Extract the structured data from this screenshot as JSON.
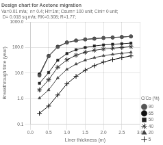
{
  "chart_data": {
    "type": "line",
    "title": "Design chart for Acetone migration",
    "subtitle": [
      "Va=0.01 m/a;  n= 0.4; Ht=1m; Csum= 100 unit; Cini= 0 unit;",
      " D= 0.018 sq.m/a; RK=0.308; R=1.77;"
    ],
    "xlabel": "Liner thickness (m)",
    "ylabel": "Breakthrough time (year)",
    "xlim": [
      0.0,
      3.0
    ],
    "ylim": [
      0.1,
      1000.0
    ],
    "xticks": [
      {
        "value": 0,
        "label": "0.0"
      },
      0.5,
      {
        "value": 1,
        "label": "1.0"
      },
      1.5,
      {
        "value": 2,
        "label": "2.0"
      },
      2.5,
      {
        "value": 3,
        "label": "3.0"
      }
    ],
    "yticks": [
      0.1,
      {
        "value": 1,
        "label": "1.0"
      },
      {
        "value": 10,
        "label": "10.0"
      },
      {
        "value": 100,
        "label": "100.0"
      },
      {
        "value": 1000,
        "label": "1000.0"
      }
    ],
    "log": "y",
    "grid": true,
    "legend": "lower right",
    "legend_title": "C/Co (%)",
    "x": [
      0.25,
      0.5,
      0.75,
      1.0,
      1.25,
      1.5,
      1.75,
      2.0,
      2.25,
      2.5,
      2.75
    ],
    "series": [
      {
        "name": "90",
        "color": "#555555",
        "marker": "circle",
        "values": [
          8.0,
          45.0,
          105.0,
          155.0,
          185.0,
          205.0,
          220.0,
          235.0,
          245.0,
          255.0,
          270.0
        ]
      },
      {
        "name": "65",
        "color": "#111111",
        "marker": "circle",
        "values": [
          9.0,
          47.0,
          108.0,
          158.0,
          188.0,
          208.0,
          223.0,
          237.0,
          247.0,
          257.0,
          272.0
        ]
      },
      {
        "name": "50",
        "color": "#222222",
        "marker": "square",
        "values": [
          4.0,
          10.5,
          32.0,
          58.0,
          82.0,
          100.0,
          115.0,
          126.0,
          134.0,
          140.0,
          148.0
        ]
      },
      {
        "name": "40",
        "color": "#333333",
        "marker": "star",
        "values": [
          2.2,
          5.5,
          17.0,
          33.0,
          50.0,
          65.0,
          78.0,
          87.0,
          94.0,
          100.0,
          108.0
        ]
      },
      {
        "name": "20",
        "color": "#444444",
        "marker": "triangle",
        "values": [
          1.05,
          2.2,
          6.5,
          14.0,
          22.5,
          32.0,
          40.0,
          48.0,
          54.0,
          59.0,
          65.0
        ]
      },
      {
        "name": "5",
        "color": "#111111",
        "marker": "plus",
        "values": [
          0.27,
          0.52,
          1.4,
          3.8,
          7.5,
          13.0,
          19.5,
          27.0,
          33.5,
          40.0,
          47.0
        ]
      }
    ]
  }
}
